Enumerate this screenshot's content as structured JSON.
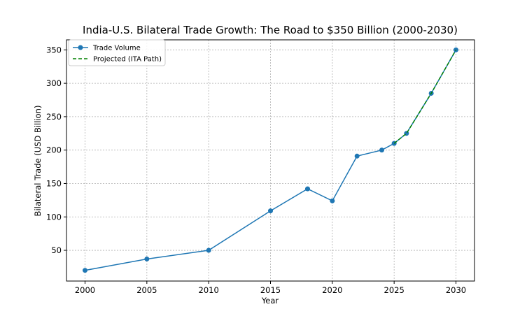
{
  "chart_data": {
    "type": "line",
    "title": "India-U.S. Bilateral Trade Growth: The Road to $350 Billion (2000-2030)",
    "xlabel": "Year",
    "ylabel": "Bilateral Trade (USD Billion)",
    "xlim": [
      1998.5,
      2031.5
    ],
    "ylim": [
      4,
      365
    ],
    "xticks": [
      2000,
      2005,
      2010,
      2015,
      2020,
      2025,
      2030
    ],
    "yticks": [
      50,
      100,
      150,
      200,
      250,
      300,
      350
    ],
    "grid": true,
    "legend_position": "top-left",
    "series": [
      {
        "name": "Trade Volume",
        "color": "#1f77b4",
        "style": "solid-with-markers",
        "points": [
          {
            "x": 2000,
            "y": 20
          },
          {
            "x": 2005,
            "y": 37
          },
          {
            "x": 2010,
            "y": 50
          },
          {
            "x": 2015,
            "y": 109
          },
          {
            "x": 2018,
            "y": 142
          },
          {
            "x": 2020,
            "y": 124
          },
          {
            "x": 2022,
            "y": 191
          },
          {
            "x": 2024,
            "y": 200
          },
          {
            "x": 2025,
            "y": 210
          },
          {
            "x": 2026,
            "y": 225
          },
          {
            "x": 2028,
            "y": 285
          },
          {
            "x": 2030,
            "y": 350
          }
        ]
      },
      {
        "name": "Projected (ITA Path)",
        "color": "#008000",
        "style": "dashed",
        "points": [
          {
            "x": 2025,
            "y": 210
          },
          {
            "x": 2026,
            "y": 225
          },
          {
            "x": 2028,
            "y": 285
          },
          {
            "x": 2030,
            "y": 350
          }
        ]
      }
    ]
  }
}
